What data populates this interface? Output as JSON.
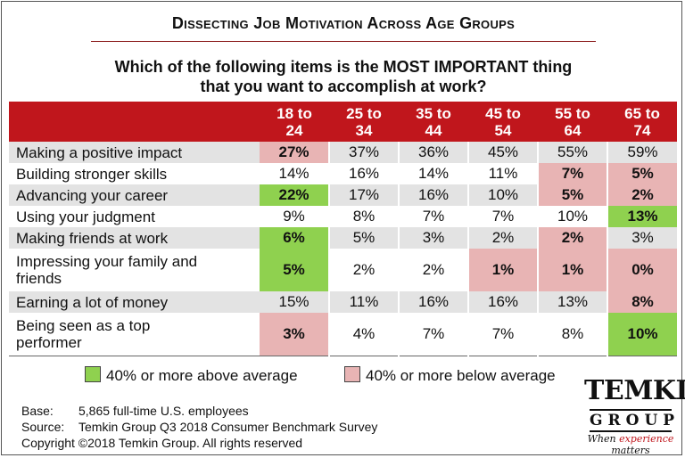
{
  "title": "Dissecting Job Motivation Across Age Groups",
  "question_lines": [
    "Which of the following items is the MOST IMPORTANT thing",
    "that you want to accomplish at work?"
  ],
  "chart_data": {
    "type": "table",
    "columns": [
      "18 to 24",
      "25 to 34",
      "35 to 44",
      "45 to 54",
      "55 to 64",
      "65 to 74"
    ],
    "column_header_lines": [
      [
        "18 to",
        "24"
      ],
      [
        "25 to",
        "34"
      ],
      [
        "35 to",
        "44"
      ],
      [
        "45 to",
        "54"
      ],
      [
        "55 to",
        "64"
      ],
      [
        "65 to",
        "74"
      ]
    ],
    "rows": [
      {
        "label": "Making a positive impact",
        "values": [
          "27%",
          "37%",
          "36%",
          "45%",
          "55%",
          "59%"
        ],
        "flags": [
          "below",
          "",
          "",
          "",
          "",
          ""
        ]
      },
      {
        "label": "Building stronger skills",
        "values": [
          "14%",
          "16%",
          "14%",
          "11%",
          "7%",
          "5%"
        ],
        "flags": [
          "",
          "",
          "",
          "",
          "below",
          "below"
        ]
      },
      {
        "label": "Advancing your career",
        "values": [
          "22%",
          "17%",
          "16%",
          "10%",
          "5%",
          "2%"
        ],
        "flags": [
          "above",
          "",
          "",
          "",
          "below",
          "below"
        ]
      },
      {
        "label": "Using your judgment",
        "values": [
          "9%",
          "8%",
          "7%",
          "7%",
          "10%",
          "13%"
        ],
        "flags": [
          "",
          "",
          "",
          "",
          "",
          "above"
        ]
      },
      {
        "label": "Making friends at work",
        "values": [
          "6%",
          "5%",
          "3%",
          "2%",
          "2%",
          "3%"
        ],
        "flags": [
          "above",
          "",
          "",
          "",
          "below",
          ""
        ]
      },
      {
        "label": "Impressing your family and friends",
        "label_lines": [
          "Impressing your family and",
          "friends"
        ],
        "values": [
          "5%",
          "2%",
          "2%",
          "1%",
          "1%",
          "0%"
        ],
        "flags": [
          "above",
          "",
          "",
          "below",
          "below",
          "below"
        ]
      },
      {
        "label": "Earning a lot of money",
        "values": [
          "15%",
          "11%",
          "16%",
          "16%",
          "13%",
          "8%"
        ],
        "flags": [
          "",
          "",
          "",
          "",
          "",
          "below"
        ]
      },
      {
        "label": "Being seen as a top performer",
        "label_lines": [
          "Being seen as a top",
          "performer"
        ],
        "values": [
          "3%",
          "4%",
          "7%",
          "7%",
          "8%",
          "10%"
        ],
        "flags": [
          "below",
          "",
          "",
          "",
          "",
          "above"
        ]
      }
    ],
    "legend": [
      {
        "label": "40% or more above average",
        "color": "#8fd14f"
      },
      {
        "label": "40% or more below average",
        "color": "#e8b4b4"
      }
    ]
  },
  "notes": {
    "base_key": "Base:",
    "base_value": "5,865 full-time U.S. employees",
    "source_key": "Source:",
    "source_value": "Temkin Group Q3 2018 Consumer Benchmark Survey",
    "copyright": "Copyright ©2018 Temkin Group. All rights reserved"
  },
  "logo": {
    "brand": "TEMKIN",
    "group": "GROUP",
    "tag_prefix": "When ",
    "tag_highlight": "experience",
    "tag_suffix": " matters"
  },
  "colors": {
    "header_bg": "#c0161c",
    "above": "#8fd14f",
    "below": "#e8b4b4",
    "alt_row": "#e3e3e3"
  }
}
